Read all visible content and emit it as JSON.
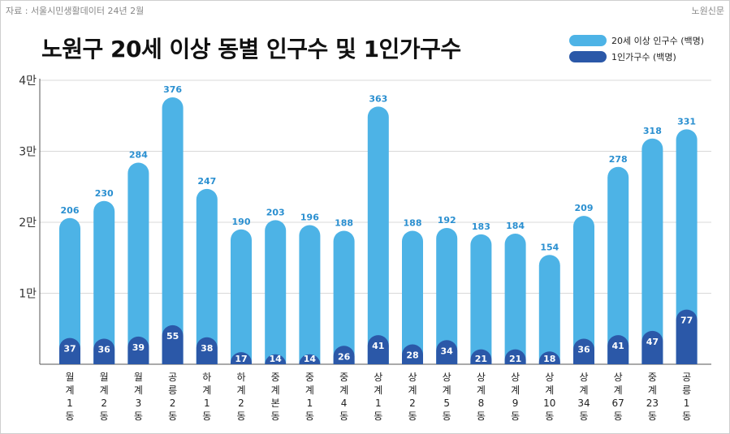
{
  "header": {
    "source": "자료 : 서울시민생활데이터 24년 2월",
    "publisher": "노원신문"
  },
  "colors": {
    "population": "#4db3e6",
    "households": "#2b58a8",
    "pop_label": "#2a8fd0",
    "grid": "#d9d9d9"
  },
  "chart_data": {
    "type": "bar",
    "title": "노원구 20세 이상 동별 인구수 및 1인가구수",
    "ylim": [
      0,
      40000
    ],
    "yticks": [
      {
        "value": 10000,
        "label": "1만"
      },
      {
        "value": 20000,
        "label": "2만"
      },
      {
        "value": 30000,
        "label": "3만"
      },
      {
        "value": 40000,
        "label": "4만"
      }
    ],
    "grid": true,
    "legend_position": "top-right",
    "categories": [
      "월계1동",
      "월계2동",
      "월계3동",
      "공릉2동",
      "하계1동",
      "하계2동",
      "중계본동",
      "중계1동",
      "중계4동",
      "상계1동",
      "상계2동",
      "상계5동",
      "상계8동",
      "상계9동",
      "상계10동",
      "상계34동",
      "상계67동",
      "중계23동",
      "공릉1동"
    ],
    "category_label_lines": [
      [
        "월",
        "계",
        "1",
        "동"
      ],
      [
        "월",
        "계",
        "2",
        "동"
      ],
      [
        "월",
        "계",
        "3",
        "동"
      ],
      [
        "공",
        "릉",
        "2",
        "동"
      ],
      [
        "하",
        "계",
        "1",
        "동"
      ],
      [
        "하",
        "계",
        "2",
        "동"
      ],
      [
        "중",
        "계",
        "본",
        "동"
      ],
      [
        "중",
        "계",
        "1",
        "동"
      ],
      [
        "중",
        "계",
        "4",
        "동"
      ],
      [
        "상",
        "계",
        "1",
        "동"
      ],
      [
        "상",
        "계",
        "2",
        "동"
      ],
      [
        "상",
        "계",
        "5",
        "동"
      ],
      [
        "상",
        "계",
        "8",
        "동"
      ],
      [
        "상",
        "계",
        "9",
        "동"
      ],
      [
        "상",
        "계",
        "10",
        "동"
      ],
      [
        "상",
        "계",
        "34",
        "동"
      ],
      [
        "상",
        "계",
        "67",
        "동"
      ],
      [
        "중",
        "계",
        "23",
        "동"
      ],
      [
        "공",
        "릉",
        "1",
        "동"
      ]
    ],
    "series": [
      {
        "name": "20세 이상 인구수 (백명)",
        "values": [
          20600,
          23000,
          28400,
          37600,
          24700,
          19000,
          20300,
          19600,
          18800,
          36300,
          18800,
          19200,
          18300,
          18400,
          15400,
          20900,
          27800,
          31800,
          33100
        ],
        "labels": [
          "206",
          "230",
          "284",
          "376",
          "247",
          "190",
          "203",
          "196",
          "188",
          "363",
          "188",
          "192",
          "183",
          "184",
          "154",
          "209",
          "278",
          "318",
          "331"
        ]
      },
      {
        "name": "1인가구수 (백명)",
        "values": [
          3700,
          3600,
          3900,
          5500,
          3800,
          1700,
          1400,
          1400,
          2600,
          4100,
          2800,
          3400,
          2100,
          2100,
          1800,
          3600,
          4100,
          4700,
          7700
        ],
        "labels": [
          "37",
          "36",
          "39",
          "55",
          "38",
          "17",
          "14",
          "14",
          "26",
          "41",
          "28",
          "34",
          "21",
          "21",
          "18",
          "36",
          "41",
          "47",
          "77"
        ]
      }
    ]
  }
}
